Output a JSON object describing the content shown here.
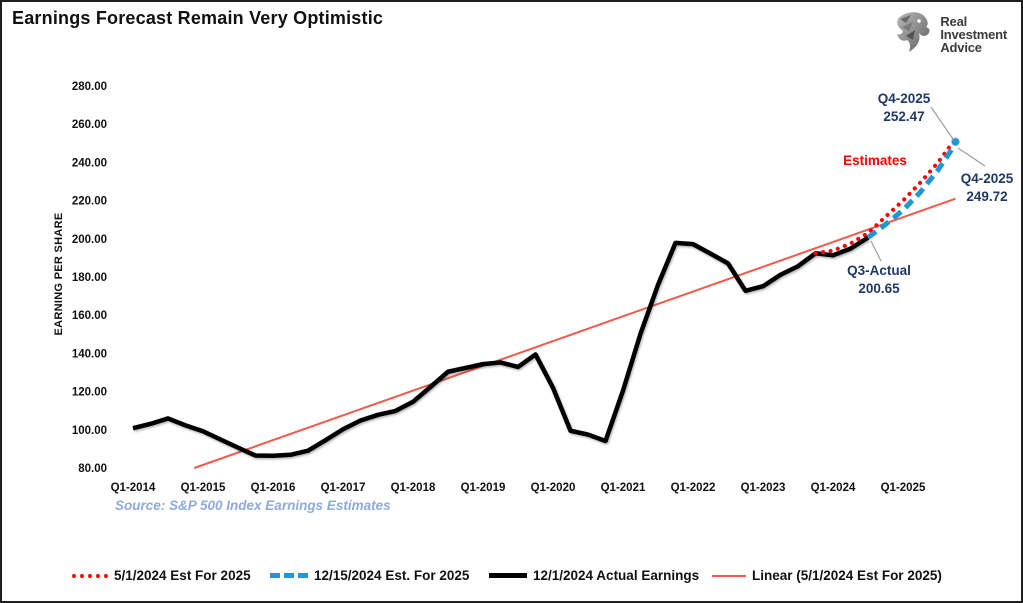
{
  "header": {
    "title": "Earnings Forecast Remain Very Optimistic",
    "logo": {
      "line1": "Real",
      "line2": "Investment",
      "line3": "Advice"
    }
  },
  "source_note": "Source: S&P 500 Index Earnings Estimates",
  "colors": {
    "actual_line": "#000000",
    "estimate_may": "#FF0000",
    "estimate_dec": "#1F97D4",
    "trendline": "#EF5B4D",
    "annotation_text": "#1F3864",
    "leader_line": "#9e9e9e",
    "source_text": "#8FAADC",
    "estimates_label": "#FF0000"
  },
  "legend": {
    "items": [
      {
        "label": "5/1/2024 Est For 2025",
        "kind": "dotted",
        "color": "#FF0000"
      },
      {
        "label": "12/15/2024 Est. For 2025",
        "kind": "dashed",
        "color": "#1F97D4"
      },
      {
        "label": "12/1/2024 Actual Earnings",
        "kind": "solid",
        "color": "#000000"
      },
      {
        "label": "Linear (5/1/2024 Est For 2025)",
        "kind": "thin",
        "color": "#EF5B4D"
      }
    ]
  },
  "chart_data": {
    "type": "line",
    "title": "Earnings Forecast Remain Very Optimistic",
    "xlabel": "",
    "ylabel": "EARNING PER SHARE",
    "ylim": [
      80,
      280
    ],
    "grid": false,
    "y_ticks": [
      80,
      100,
      120,
      140,
      160,
      180,
      200,
      220,
      240,
      260,
      280
    ],
    "x_tick_labels": [
      "Q1-2014",
      "Q1-2015",
      "Q1-2016",
      "Q1-2017",
      "Q1-2018",
      "Q1-2019",
      "Q1-2020",
      "Q1-2021",
      "Q1-2022",
      "Q1-2023",
      "Q1-2024",
      "Q1-2025"
    ],
    "quarters_per_label": 4,
    "series": [
      {
        "name": "12/1/2024 Actual Earnings",
        "style": "solid",
        "color": "#000000",
        "width": 4.5,
        "start_quarter": 0,
        "values": [
          100.85,
          103.12,
          105.96,
          102.31,
          99.25,
          94.91,
          90.66,
          86.53,
          86.44,
          86.92,
          89.09,
          94.55,
          100.29,
          104.88,
          107.84,
          109.88,
          114.67,
          122.46,
          130.39,
          132.39,
          134.39,
          135.27,
          132.9,
          139.47,
          122.0,
          99.5,
          97.5,
          94.14,
          120.5,
          150.3,
          175.9,
          197.87,
          197.2,
          192.26,
          187.14,
          172.75,
          175.17,
          181.17,
          185.64,
          192.43,
          191.36,
          194.85,
          200.65
        ]
      },
      {
        "name": "5/1/2024 Est For 2025",
        "style": "dotted",
        "color": "#FF0000",
        "width": 4,
        "start_quarter": 39,
        "values": [
          192.43,
          193.8,
          197.5,
          203.0,
          211.5,
          220.0,
          229.5,
          240.0,
          252.47
        ]
      },
      {
        "name": "12/15/2024 Est. For 2025",
        "style": "dashed",
        "color": "#1F97D4",
        "width": 5,
        "start_quarter": 42,
        "values": [
          200.65,
          207.5,
          215.0,
          224.5,
          236.0,
          249.72
        ]
      }
    ],
    "trendline": {
      "name": "Linear (5/1/2024 Est For 2025)",
      "color": "#EF5B4D",
      "width": 2,
      "start_quarter": 3.5,
      "start_value": 80,
      "end_quarter": 47,
      "end_value": 221
    },
    "end_marker": {
      "quarter": 47,
      "value": 249.72,
      "color": "#1F97D4"
    },
    "annotations": [
      {
        "id": "est-high",
        "lines": [
          "Q4-2025",
          "252.47"
        ],
        "color": "#1F3864",
        "tx": 902,
        "ty": 101,
        "line_gap": 18,
        "anchor": "middle",
        "leader": [
          [
            929,
            105
          ],
          [
            951,
            137
          ]
        ]
      },
      {
        "id": "est-low",
        "lines": [
          "Q4-2025",
          "249.72"
        ],
        "color": "#1F3864",
        "tx": 985,
        "ty": 181,
        "line_gap": 18,
        "anchor": "middle",
        "leader": [
          [
            956,
            146
          ],
          [
            983,
            164
          ]
        ]
      },
      {
        "id": "q3-actual",
        "lines": [
          "Q3-Actual",
          "200.65"
        ],
        "color": "#1F3864",
        "tx": 877,
        "ty": 273,
        "line_gap": 18,
        "anchor": "middle",
        "leader": [
          [
            869,
            239
          ],
          [
            879,
            259
          ]
        ]
      },
      {
        "id": "estimates-label",
        "lines": [
          "Estimates"
        ],
        "color": "#FF0000",
        "tx": 873,
        "ty": 163,
        "line_gap": 0,
        "anchor": "middle",
        "leader": []
      }
    ],
    "annotation_values": {
      "est_may_q4_2025": 252.47,
      "est_dec_q4_2025": 249.72,
      "actual_q3_2024": 200.65
    }
  }
}
